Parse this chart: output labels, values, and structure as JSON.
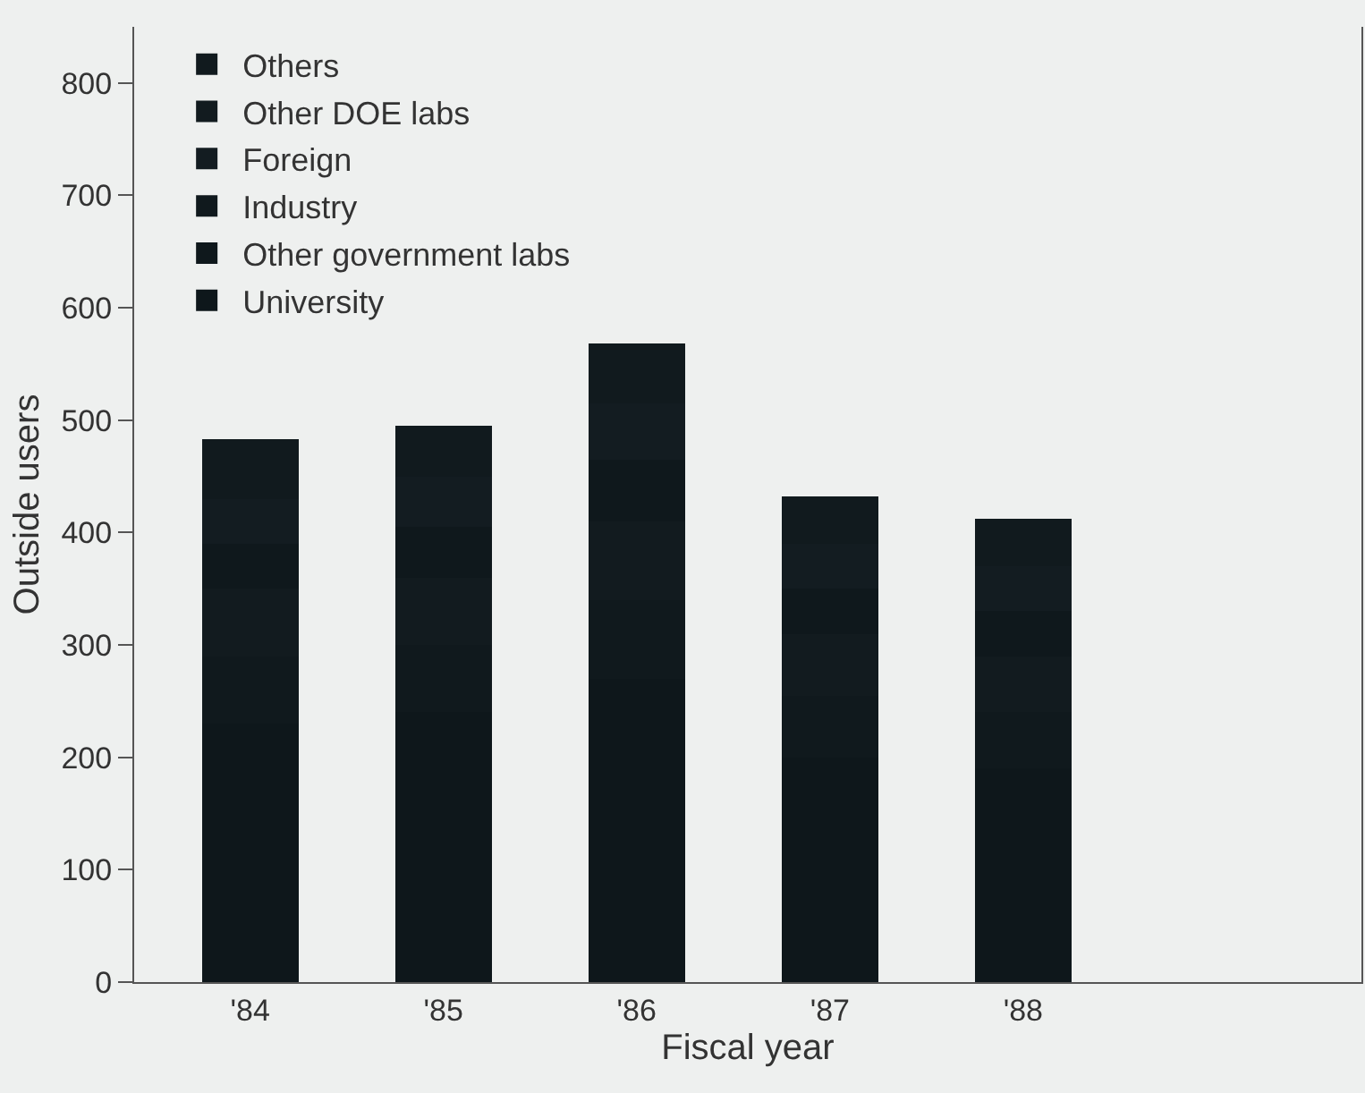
{
  "chart_data": {
    "type": "bar",
    "stacked": true,
    "xlabel": "Fiscal year",
    "ylabel": "Outside users",
    "categories": [
      "'84",
      "'85",
      "'86",
      "'87",
      "'88"
    ],
    "series": [
      {
        "name": "University",
        "color": "#0e171b",
        "values": [
          230,
          240,
          270,
          200,
          190
        ]
      },
      {
        "name": "Industry",
        "color": "#10191d",
        "values": [
          60,
          60,
          70,
          55,
          50
        ]
      },
      {
        "name": "Other DOE labs",
        "color": "#121b1f",
        "values": [
          60,
          60,
          70,
          55,
          50
        ]
      },
      {
        "name": "Other government labs",
        "color": "#0f181c",
        "values": [
          40,
          45,
          55,
          40,
          40
        ]
      },
      {
        "name": "Foreign",
        "color": "#131c21",
        "values": [
          40,
          45,
          50,
          40,
          40
        ]
      },
      {
        "name": "Others",
        "color": "#111a1e",
        "values": [
          53,
          45,
          53,
          42,
          42
        ]
      }
    ],
    "ylim": [
      0,
      850
    ],
    "yticks": [
      0,
      100,
      200,
      300,
      400,
      500,
      600,
      700,
      800
    ],
    "grid": false,
    "legend": "top"
  }
}
